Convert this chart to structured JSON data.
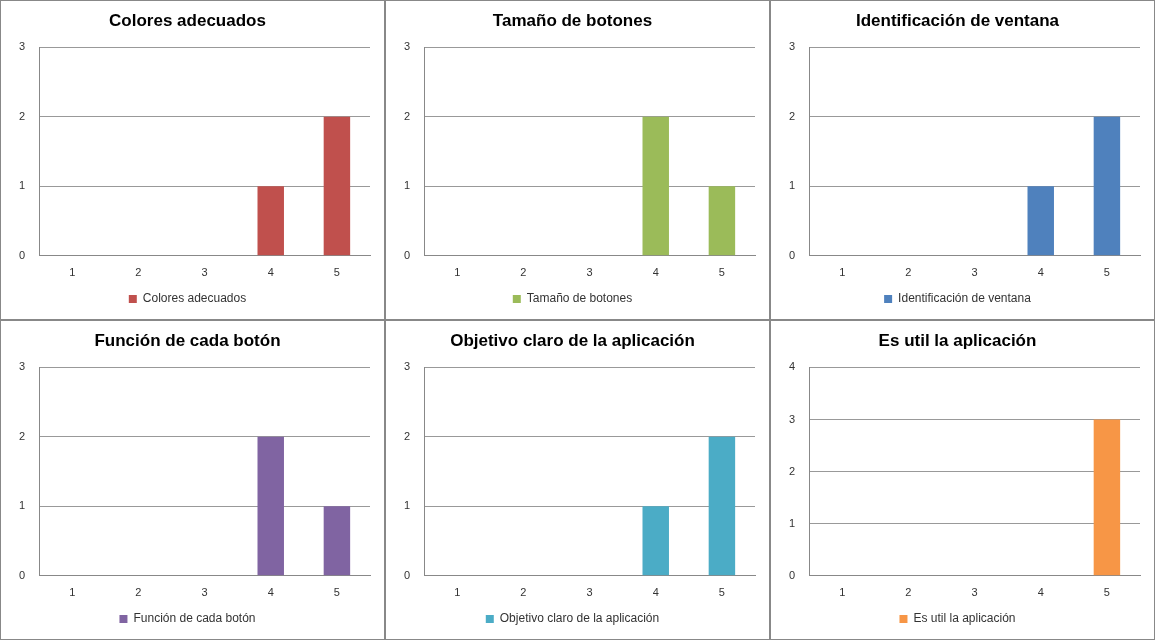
{
  "chart_data": [
    {
      "type": "bar",
      "title": "Colores adecuados",
      "categories": [
        "1",
        "2",
        "3",
        "4",
        "5"
      ],
      "series": [
        {
          "name": "Colores adecuados",
          "color": "#c0504d",
          "values": [
            0,
            0,
            0,
            1,
            2
          ]
        }
      ],
      "ylim": [
        0,
        3
      ],
      "yticks": [
        0,
        1,
        2,
        3
      ],
      "grid": "y",
      "legend": "bottom"
    },
    {
      "type": "bar",
      "title": "Tamaño de botones",
      "categories": [
        "1",
        "2",
        "3",
        "4",
        "5"
      ],
      "series": [
        {
          "name": "Tamaño de botones",
          "color": "#9bbb59",
          "values": [
            0,
            0,
            0,
            2,
            1
          ]
        }
      ],
      "ylim": [
        0,
        3
      ],
      "yticks": [
        0,
        1,
        2,
        3
      ],
      "grid": "y",
      "legend": "bottom"
    },
    {
      "type": "bar",
      "title": "Identificación de ventana",
      "categories": [
        "1",
        "2",
        "3",
        "4",
        "5"
      ],
      "series": [
        {
          "name": "Identificación de ventana",
          "color": "#4f81bd",
          "values": [
            0,
            0,
            0,
            1,
            2
          ]
        }
      ],
      "ylim": [
        0,
        3
      ],
      "yticks": [
        0,
        1,
        2,
        3
      ],
      "grid": "y",
      "legend": "bottom"
    },
    {
      "type": "bar",
      "title": "Función de cada botón",
      "categories": [
        "1",
        "2",
        "3",
        "4",
        "5"
      ],
      "series": [
        {
          "name": "Función de cada botón",
          "color": "#8064a2",
          "values": [
            0,
            0,
            0,
            2,
            1
          ]
        }
      ],
      "ylim": [
        0,
        3
      ],
      "yticks": [
        0,
        1,
        2,
        3
      ],
      "grid": "y",
      "legend": "bottom"
    },
    {
      "type": "bar",
      "title": "Objetivo claro de la aplicación",
      "categories": [
        "1",
        "2",
        "3",
        "4",
        "5"
      ],
      "series": [
        {
          "name": "Objetivo claro de la aplicación",
          "color": "#4bacc6",
          "values": [
            0,
            0,
            0,
            1,
            2
          ]
        }
      ],
      "ylim": [
        0,
        3
      ],
      "yticks": [
        0,
        1,
        2,
        3
      ],
      "grid": "y",
      "legend": "bottom"
    },
    {
      "type": "bar",
      "title": "Es util la aplicación",
      "categories": [
        "1",
        "2",
        "3",
        "4",
        "5"
      ],
      "series": [
        {
          "name": "Es util la aplicación",
          "color": "#f79646",
          "values": [
            0,
            0,
            0,
            0,
            3
          ]
        }
      ],
      "ylim": [
        0,
        4
      ],
      "yticks": [
        0,
        1,
        2,
        3,
        4
      ],
      "grid": "y",
      "legend": "bottom"
    }
  ]
}
